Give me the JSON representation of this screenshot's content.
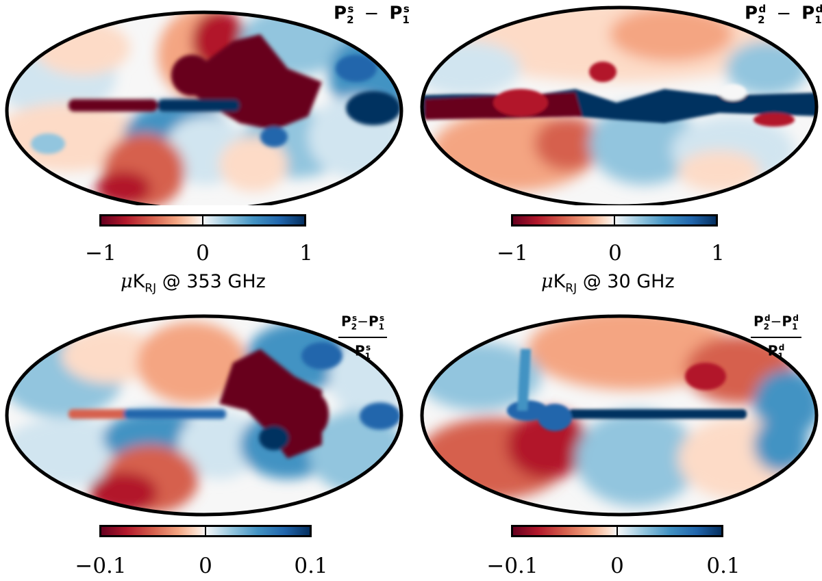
{
  "panels": [
    {
      "id": "p1",
      "title_main": "P",
      "title_parts": {
        "a_sub": "2",
        "a_sup": "s",
        "op": "−",
        "b_sub": "1",
        "b_sup": "s"
      },
      "colorbar": {
        "min_label": "−1",
        "mid_label": "0",
        "max_label": "1"
      },
      "unit": {
        "mu": "μ",
        "k": "K",
        "sub": "RJ",
        "rest": " @ 353 GHz"
      }
    },
    {
      "id": "p2",
      "title_main": "P",
      "title_parts": {
        "a_sub": "2",
        "a_sup": "d",
        "op": "−",
        "b_sub": "1",
        "b_sup": "d"
      },
      "colorbar": {
        "min_label": "−1",
        "mid_label": "0",
        "max_label": "1"
      },
      "unit": {
        "mu": "μ",
        "k": "K",
        "sub": "RJ",
        "rest": " @ 30 GHz"
      }
    },
    {
      "id": "p3",
      "title_main": "P",
      "title_parts": {
        "a_sub": "2",
        "a_sup": "s",
        "op": "−",
        "b_sub": "1",
        "b_sup": "s",
        "den_sub": "1",
        "den_sup": "s"
      },
      "colorbar": {
        "min_label": "−0.1",
        "mid_label": "0",
        "max_label": "0.1"
      }
    },
    {
      "id": "p4",
      "title_main": "P",
      "title_parts": {
        "a_sub": "2",
        "a_sup": "d",
        "op": "−",
        "b_sub": "1",
        "b_sup": "d",
        "den_sub": "1",
        "den_sup": "d"
      },
      "colorbar": {
        "min_label": "−0.1",
        "mid_label": "0",
        "max_label": "0.1"
      }
    }
  ],
  "palette": {
    "deep_red": "#67001f",
    "red": "#b2182b",
    "light_red": "#f4a582",
    "white": "#f7f7f7",
    "light_blue": "#92c5de",
    "blue": "#2166ac",
    "deep_blue": "#053061"
  }
}
